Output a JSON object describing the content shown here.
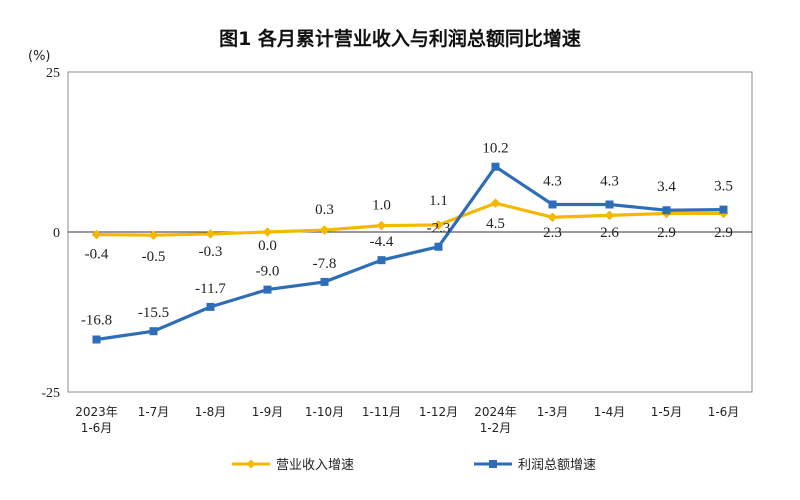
{
  "chart_data": {
    "type": "line",
    "title": "图1  各月累计营业收入与利润总额同比增速",
    "ylabel": "(%)",
    "xlabel": "",
    "ylim": [
      -25,
      25
    ],
    "yticks": [
      "25",
      "0",
      "-25"
    ],
    "categories": [
      [
        "2023年",
        "1-6月"
      ],
      [
        "1-7月"
      ],
      [
        "1-8月"
      ],
      [
        "1-9月"
      ],
      [
        "1-10月"
      ],
      [
        "1-11月"
      ],
      [
        "1-12月"
      ],
      [
        "2024年",
        "1-2月"
      ],
      [
        "1-3月"
      ],
      [
        "1-4月"
      ],
      [
        "1-5月"
      ],
      [
        "1-6月"
      ]
    ],
    "grid": false,
    "legend_position": "bottom",
    "series": [
      {
        "name": "营业收入增速",
        "color": "#F5B800",
        "marker": "diamond",
        "values": [
          -0.4,
          -0.5,
          -0.3,
          0.0,
          0.3,
          1.0,
          1.1,
          4.5,
          2.3,
          2.6,
          2.9,
          2.9
        ],
        "labels": [
          "-0.4",
          "-0.5",
          "-0.3",
          "0.0",
          "0.3",
          "1.0",
          "1.1",
          "4.5",
          "2.3",
          "2.6",
          "2.9",
          "2.9"
        ]
      },
      {
        "name": "利润总额增速",
        "color": "#2E6DB8",
        "marker": "square",
        "values": [
          -16.8,
          -15.5,
          -11.7,
          -9.0,
          -7.8,
          -4.4,
          -2.3,
          10.2,
          4.3,
          4.3,
          3.4,
          3.5
        ],
        "labels": [
          "-16.8",
          "-15.5",
          "-11.7",
          "-9.0",
          "-7.8",
          "-4.4",
          "-2.3",
          "10.2",
          "4.3",
          "4.3",
          "3.4",
          "3.5"
        ]
      }
    ]
  }
}
